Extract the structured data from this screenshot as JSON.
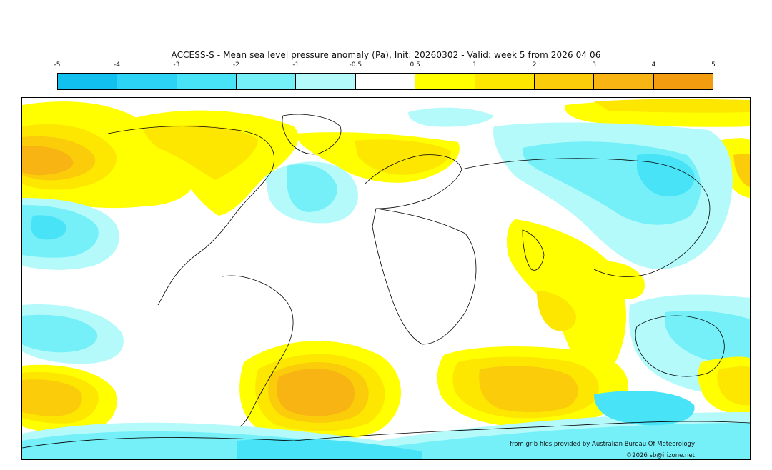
{
  "title": "ACCESS-S - Mean sea level pressure anomaly (Pa), Init: 20260302 - Valid: week 5 from 2026 04 06",
  "legend": {
    "ticks": [
      "-5",
      "-4",
      "-3",
      "-2",
      "-1",
      "-0.5",
      "0.5",
      "1",
      "2",
      "3",
      "4",
      "5"
    ],
    "bins": [
      {
        "range": "-5 to -4",
        "color": "#12c0f0"
      },
      {
        "range": "-4 to -3",
        "color": "#2dd3f4"
      },
      {
        "range": "-3 to -2",
        "color": "#48e3f6"
      },
      {
        "range": "-2 to -1",
        "color": "#75f0f8"
      },
      {
        "range": "-1 to -0.5",
        "color": "#b4fafb"
      },
      {
        "range": "-0.5 to 0.5",
        "color": "#ffffff"
      },
      {
        "range": "0.5 to 1",
        "color": "#ffff00"
      },
      {
        "range": "1 to 2",
        "color": "#fde700"
      },
      {
        "range": "2 to 3",
        "color": "#fbcc0a"
      },
      {
        "range": "3 to 4",
        "color": "#f8b412"
      },
      {
        "range": "4 to 5",
        "color": "#f49c10"
      }
    ]
  },
  "credits": {
    "source": "from grib files provided by Australian Bureau Of Meteorology",
    "copyright": "©2026 sb@irizone.net"
  }
}
